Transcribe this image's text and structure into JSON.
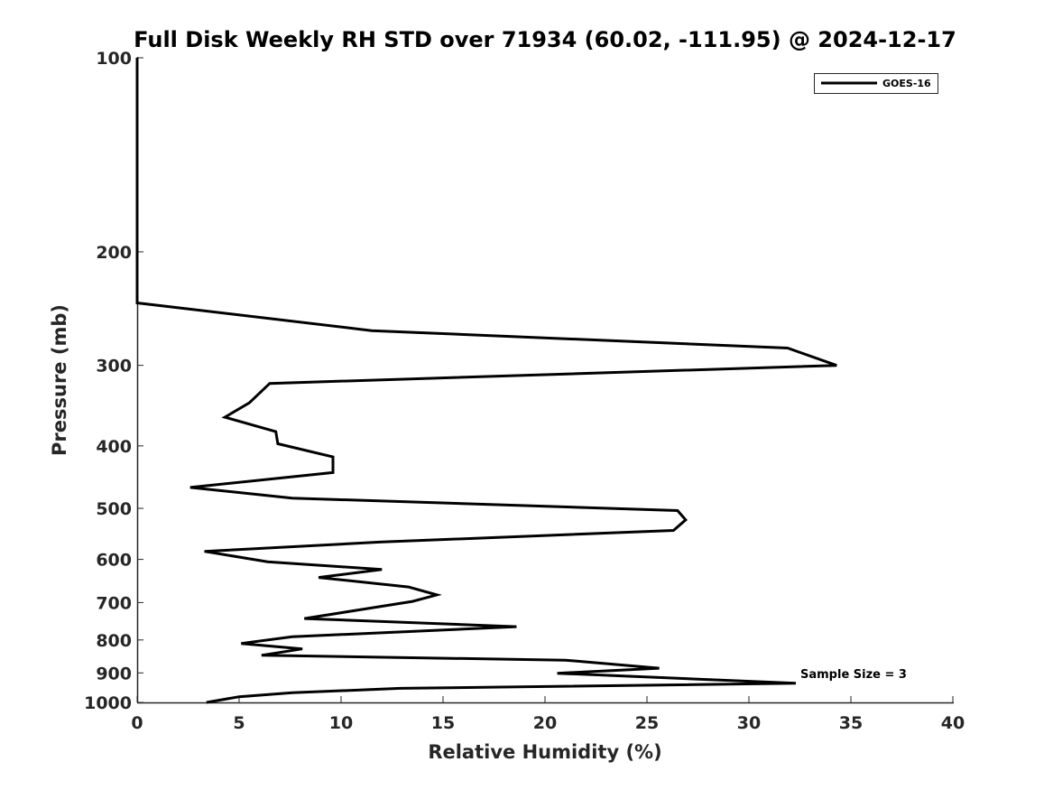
{
  "chart_data": {
    "type": "line",
    "title": "Full Disk Weekly RH STD over 71934 (60.02, -111.95) @ 2024-12-17",
    "xlabel": "Relative Humidity (%)",
    "ylabel": "Pressure (mb)",
    "xlim": [
      0,
      40
    ],
    "ylim": [
      100,
      1000
    ],
    "y_scale": "log",
    "y_reversed": true,
    "x_ticks": [
      "0",
      "5",
      "10",
      "15",
      "20",
      "25",
      "30",
      "35",
      "40"
    ],
    "y_ticks": [
      "100",
      "200",
      "300",
      "400",
      "500",
      "600",
      "700",
      "800",
      "900",
      "1000"
    ],
    "grid": false,
    "legend_position": "top-right",
    "series": [
      {
        "name": "GOES-16",
        "color": "#000000",
        "x": [
          0,
          0,
          0,
          0,
          0,
          0,
          0,
          0,
          0,
          0,
          0,
          0,
          11.5,
          31.9,
          34.3,
          6.5,
          5.5,
          4.3,
          6.8,
          6.9,
          9.6,
          9.6,
          2.6,
          7.6,
          26.5,
          26.9,
          26.3,
          11.9,
          3.3,
          6.4,
          12.0,
          8.9,
          13.3,
          14.7,
          13.5,
          11.2,
          8.2,
          18.6,
          7.6,
          5.1,
          8.1,
          6.1,
          21.0,
          25.6,
          20.6,
          32.3,
          12.9,
          7.6,
          5.0,
          3.4
        ],
        "y": [
          100,
          110,
          120,
          130,
          140,
          150,
          160,
          170,
          180,
          200,
          220,
          240,
          265,
          282,
          300,
          320,
          343,
          361,
          380,
          397,
          416,
          440,
          464,
          482,
          504,
          521,
          541,
          564,
          583,
          605,
          622,
          640,
          662,
          681,
          697,
          716,
          741,
          763,
          791,
          810,
          826,
          845,
          860,
          885,
          901,
          934,
          951,
          966,
          980,
          1000
        ]
      }
    ],
    "annotations": [
      "Sample Size = 3"
    ]
  }
}
